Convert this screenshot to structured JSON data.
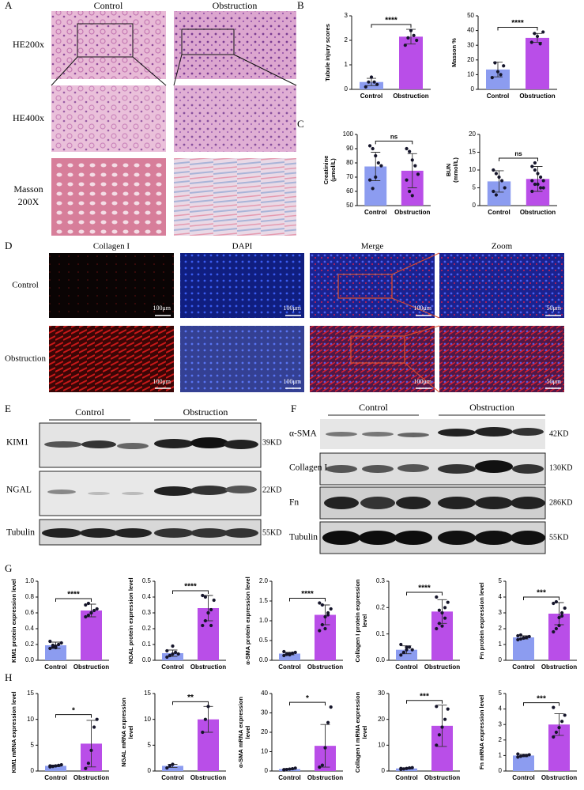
{
  "panels": {
    "A": {
      "letter": "A",
      "columns": [
        "Control",
        "Obstruction"
      ],
      "rows": [
        "HE200x",
        "HE400x",
        [
          "Masson",
          "200X"
        ]
      ]
    },
    "B": {
      "letter": "B"
    },
    "C": {
      "letter": "C"
    },
    "D": {
      "letter": "D",
      "columns": [
        "Collagen I",
        "DAPI",
        "Merge",
        "Zoom"
      ],
      "rows": [
        "Control",
        "Obstruction"
      ],
      "scale_bars": [
        "100μm",
        "100μm",
        "100μm",
        "50μm"
      ]
    },
    "E": {
      "letter": "E",
      "groups": [
        "Control",
        "Obstruction"
      ],
      "rows": [
        {
          "label": "KIM1",
          "size": "39KD"
        },
        {
          "label": "NGAL",
          "size": "22KD"
        },
        {
          "label": "Tubulin",
          "size": "55KD"
        }
      ]
    },
    "F": {
      "letter": "F",
      "groups": [
        "Control",
        "Obstruction"
      ],
      "rows": [
        {
          "label": "α-SMA",
          "size": "42KD"
        },
        {
          "label": "Collagen I",
          "size": "130KD"
        },
        {
          "label": "Fn",
          "size": "286KD"
        },
        {
          "label": "Tubulin",
          "size": "55KD"
        }
      ]
    },
    "G": {
      "letter": "G"
    },
    "H": {
      "letter": "H"
    }
  },
  "chart_data": [
    {
      "type": "bar",
      "ylabel": [
        "Tubule injury scores"
      ],
      "categories": [
        "Control",
        "Obstruction"
      ],
      "colors": [
        "#8c9cf0",
        "#b94ee8"
      ],
      "values": [
        0.3,
        2.15
      ],
      "errors": [
        0.15,
        0.3
      ],
      "points": [
        [
          0.1,
          0.3,
          0.5,
          0.3,
          0.2
        ],
        [
          1.8,
          2.1,
          2.4,
          2.2,
          2.0
        ]
      ],
      "significance": "****",
      "ylim": [
        0,
        3
      ],
      "yticks": [
        0,
        1,
        2,
        3
      ]
    },
    {
      "type": "bar",
      "ylabel": [
        "Masson %"
      ],
      "categories": [
        "Control",
        "Obstruction"
      ],
      "colors": [
        "#8c9cf0",
        "#b94ee8"
      ],
      "values": [
        13.5,
        35
      ],
      "errors": [
        5,
        3
      ],
      "points": [
        [
          8,
          18,
          12,
          10,
          16
        ],
        [
          32,
          38,
          36,
          31,
          39
        ]
      ],
      "significance": "****",
      "ylim": [
        0,
        50
      ],
      "yticks": [
        0,
        10,
        20,
        30,
        40,
        50
      ]
    },
    {
      "type": "bar",
      "ylabel": [
        "Creatinine",
        "(μmol/L)"
      ],
      "categories": [
        "Control",
        "Obstruction"
      ],
      "colors": [
        "#8c9cf0",
        "#b94ee8"
      ],
      "values": [
        77.5,
        74.5
      ],
      "errors": [
        10,
        12
      ],
      "points": [
        [
          92,
          90,
          85,
          80,
          78,
          68,
          62,
          70
        ],
        [
          90,
          88,
          82,
          78,
          72,
          68,
          60,
          57
        ]
      ],
      "significance": "ns",
      "ylim": [
        50,
        100
      ],
      "yticks": [
        50,
        60,
        70,
        80,
        90,
        100
      ]
    },
    {
      "type": "bar",
      "ylabel": [
        "BUN",
        "(mmol/L)"
      ],
      "categories": [
        "Control",
        "Obstruction"
      ],
      "colors": [
        "#8c9cf0",
        "#b94ee8"
      ],
      "values": [
        6.8,
        7.5
      ],
      "errors": [
        3,
        3.5
      ],
      "points": [
        [
          10,
          9,
          8,
          7,
          5,
          4,
          3
        ],
        [
          11,
          10,
          9,
          8,
          7,
          7,
          6,
          6,
          5,
          5,
          4,
          12
        ]
      ],
      "significance": "ns",
      "ylim": [
        0,
        20
      ],
      "yticks": [
        0,
        5,
        10,
        15,
        20
      ]
    },
    {
      "type": "bar",
      "ylabel": [
        "KIM1 protein expression level"
      ],
      "categories": [
        "Control",
        "Obstruction"
      ],
      "colors": [
        "#8c9cf0",
        "#b94ee8"
      ],
      "values": [
        0.19,
        0.63
      ],
      "errors": [
        0.04,
        0.08
      ],
      "points": [
        [
          0.15,
          0.17,
          0.18,
          0.2,
          0.22,
          0.24,
          0.19,
          0.16
        ],
        [
          0.55,
          0.57,
          0.6,
          0.63,
          0.65,
          0.7,
          0.72,
          0.6
        ]
      ],
      "significance": "****",
      "ylim": [
        0,
        1
      ],
      "yticks": [
        {
          "value": 0,
          "label": "0.0"
        },
        0.2,
        0.4,
        0.6,
        0.8,
        {
          "value": 1,
          "label": "1.0"
        }
      ]
    },
    {
      "type": "bar",
      "ylabel": [
        "NGAL protein expression level"
      ],
      "categories": [
        "Control",
        "Obstruction"
      ],
      "colors": [
        "#8c9cf0",
        "#b94ee8"
      ],
      "values": [
        0.045,
        0.33
      ],
      "errors": [
        0.02,
        0.08
      ],
      "points": [
        [
          0.02,
          0.03,
          0.04,
          0.05,
          0.04,
          0.06,
          0.03,
          0.09
        ],
        [
          0.22,
          0.25,
          0.3,
          0.32,
          0.38,
          0.41,
          0.4,
          0.3,
          0.22
        ]
      ],
      "significance": "****",
      "ylim": [
        0,
        0.5
      ],
      "yticks": [
        {
          "value": 0,
          "label": "0.0"
        },
        0.1,
        0.2,
        0.3,
        0.4,
        0.5
      ]
    },
    {
      "type": "bar",
      "ylabel": [
        "α-SMA protein expression level"
      ],
      "categories": [
        "Control",
        "Obstruction"
      ],
      "colors": [
        "#8c9cf0",
        "#b94ee8"
      ],
      "values": [
        0.17,
        1.15
      ],
      "errors": [
        0.03,
        0.25
      ],
      "points": [
        [
          0.12,
          0.15,
          0.17,
          0.18,
          0.2,
          0.22,
          0.16,
          0.14
        ],
        [
          0.75,
          0.9,
          1.1,
          1.2,
          1.3,
          1.45,
          1.4,
          0.8,
          1.15
        ]
      ],
      "significance": "****",
      "ylim": [
        0,
        2
      ],
      "yticks": [
        {
          "value": 0,
          "label": "0.0"
        },
        0.5,
        {
          "value": 1,
          "label": "1.0"
        },
        1.5,
        {
          "value": 2,
          "label": "2.0"
        }
      ]
    },
    {
      "type": "bar",
      "ylabel": [
        "Collagen I protein expression",
        "level"
      ],
      "categories": [
        "Control",
        "Obstruction"
      ],
      "colors": [
        "#8c9cf0",
        "#b94ee8"
      ],
      "values": [
        0.04,
        0.185
      ],
      "errors": [
        0.015,
        0.045
      ],
      "points": [
        [
          0.02,
          0.03,
          0.04,
          0.05,
          0.04,
          0.06,
          0.03,
          0.05
        ],
        [
          0.12,
          0.14,
          0.18,
          0.2,
          0.22,
          0.24,
          0.19,
          0.13,
          0.16
        ]
      ],
      "significance": "****",
      "ylim": [
        0,
        0.3
      ],
      "yticks": [
        {
          "value": 0,
          "label": "0.0"
        },
        0.1,
        0.2,
        0.3
      ]
    },
    {
      "type": "bar",
      "ylabel": [
        "Fn protein expression level"
      ],
      "categories": [
        "Control",
        "Obstruction"
      ],
      "colors": [
        "#8c9cf0",
        "#b94ee8"
      ],
      "values": [
        1.45,
        2.95
      ],
      "errors": [
        0.1,
        0.7
      ],
      "points": [
        [
          1.3,
          1.35,
          1.4,
          1.45,
          1.5,
          1.55,
          1.6,
          1.42
        ],
        [
          1.8,
          2.0,
          2.7,
          3.0,
          3.3,
          3.6,
          3.7,
          2.2,
          2.8
        ]
      ],
      "significance": "***",
      "ylim": [
        0,
        5
      ],
      "yticks": [
        0,
        1,
        2,
        3,
        4,
        5
      ]
    },
    {
      "type": "bar",
      "ylabel": [
        "KIM1 mRNA expression level"
      ],
      "categories": [
        "Control",
        "Obstruction"
      ],
      "colors": [
        "#8c9cf0",
        "#b94ee8"
      ],
      "values": [
        1,
        5.3
      ],
      "errors": [
        0.15,
        4.5
      ],
      "points": [
        [
          0.8,
          0.9,
          1,
          1.1,
          1.2,
          1.0,
          0.9
        ],
        [
          0.5,
          1.5,
          4,
          8.5,
          10
        ]
      ],
      "significance": "*",
      "ylim": [
        0,
        15
      ],
      "yticks": [
        0,
        5,
        10,
        15
      ]
    },
    {
      "type": "bar",
      "ylabel": [
        "NGAL mRNA expression",
        "level"
      ],
      "categories": [
        "Control",
        "Obstruction"
      ],
      "colors": [
        "#8c9cf0",
        "#b94ee8"
      ],
      "values": [
        1,
        10
      ],
      "errors": [
        0.3,
        2.5
      ],
      "points": [
        [
          0.6,
          1.0,
          1.3
        ],
        [
          7.5,
          10,
          12.5
        ]
      ],
      "significance": "**",
      "ylim": [
        0,
        15
      ],
      "yticks": [
        0,
        5,
        10,
        15
      ]
    },
    {
      "type": "bar",
      "ylabel": [
        "α-SMA mRNA expression",
        "level"
      ],
      "categories": [
        "Control",
        "Obstruction"
      ],
      "colors": [
        "#8c9cf0",
        "#b94ee8"
      ],
      "values": [
        1,
        13
      ],
      "errors": [
        0.3,
        11
      ],
      "points": [
        [
          0.5,
          0.8,
          1,
          1.2,
          1.5,
          0.7
        ],
        [
          2,
          3,
          12,
          25,
          33
        ]
      ],
      "significance": "*",
      "ylim": [
        0,
        40
      ],
      "yticks": [
        0,
        10,
        20,
        30,
        40
      ]
    },
    {
      "type": "bar",
      "ylabel": [
        "Collagen I mRNA expression",
        "level"
      ],
      "categories": [
        "Control",
        "Obstruction"
      ],
      "colors": [
        "#8c9cf0",
        "#b94ee8"
      ],
      "values": [
        1,
        17.5
      ],
      "errors": [
        0.25,
        8
      ],
      "points": [
        [
          0.6,
          0.8,
          1,
          1.2,
          1.3,
          1.0
        ],
        [
          10,
          14,
          17,
          20,
          24,
          25
        ]
      ],
      "significance": "***",
      "ylim": [
        0,
        30
      ],
      "yticks": [
        0,
        10,
        20,
        30
      ]
    },
    {
      "type": "bar",
      "ylabel": [
        "Fn mRNA expression level"
      ],
      "categories": [
        "Control",
        "Obstruction"
      ],
      "colors": [
        "#8c9cf0",
        "#b94ee8"
      ],
      "values": [
        1,
        3
      ],
      "errors": [
        0.08,
        0.7
      ],
      "points": [
        [
          0.9,
          0.95,
          1,
          1.0,
          1.05,
          1.1
        ],
        [
          2.2,
          2.5,
          2.8,
          3.2,
          3.6,
          4.1
        ]
      ],
      "significance": "***",
      "ylim": [
        0,
        5
      ],
      "yticks": [
        0,
        1,
        2,
        3,
        4,
        5
      ]
    }
  ]
}
